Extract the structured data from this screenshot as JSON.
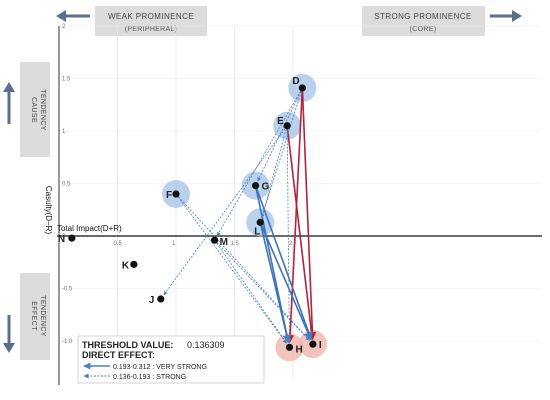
{
  "chart_data": {
    "type": "scatter",
    "xlabel": "Total Impact(D+R)",
    "ylabel": "Casulty(D−R)",
    "xlim": [
      0,
      2.3
    ],
    "ylim": [
      -1.3,
      2.0
    ],
    "x_ticks": [
      "0.5",
      "1",
      "1.5",
      "2"
    ],
    "y_ticks": [
      "2",
      "1.5",
      "1",
      "0.5",
      "0",
      "-0.5",
      "-1.0"
    ],
    "quadrants": {
      "top_left": "WEAK PROMINENCE",
      "top_left_sub": "(PERIPHERAL)",
      "top_right": "STRONG PROMINENCE",
      "top_right_sub": "(CORE)",
      "left_top_1": "CAUSE",
      "left_top_2": "TENDENCY",
      "left_bottom_1": "EFFECT",
      "left_bottom_2": "TENDENCY"
    },
    "points": [
      {
        "id": "D",
        "x": 2.08,
        "y": 1.41,
        "circle": "blue"
      },
      {
        "id": "E",
        "x": 1.95,
        "y": 1.05,
        "circle": "blue"
      },
      {
        "id": "F",
        "x": 1.0,
        "y": 0.4,
        "circle": "blue"
      },
      {
        "id": "G",
        "x": 1.68,
        "y": 0.48,
        "circle": "blue"
      },
      {
        "id": "L",
        "x": 1.72,
        "y": 0.13,
        "circle": "blue"
      },
      {
        "id": "H",
        "x": 1.97,
        "y": -1.06,
        "circle": "red"
      },
      {
        "id": "I",
        "x": 2.17,
        "y": -1.03,
        "circle": "red"
      },
      {
        "id": "M",
        "x": 1.33,
        "y": -0.04,
        "circle": "none"
      },
      {
        "id": "N",
        "x": 0.11,
        "y": -0.02,
        "circle": "none"
      },
      {
        "id": "K",
        "x": 0.64,
        "y": -0.27,
        "circle": "none"
      },
      {
        "id": "J",
        "x": 0.87,
        "y": -0.6,
        "circle": "none"
      }
    ],
    "relations": [
      {
        "from": "D",
        "to": "H",
        "strength": "very_strong"
      },
      {
        "from": "D",
        "to": "I",
        "strength": "very_strong"
      },
      {
        "from": "E",
        "to": "I",
        "strength": "very_strong"
      },
      {
        "from": "L",
        "to": "H",
        "strength": "very_strong_blue"
      },
      {
        "from": "L",
        "to": "I",
        "strength": "very_strong_blue"
      },
      {
        "from": "G",
        "to": "H",
        "strength": "very_strong_blue"
      },
      {
        "from": "G",
        "to": "I",
        "strength": "very_strong_blue"
      },
      {
        "from": "D",
        "to": "M",
        "strength": "strong"
      },
      {
        "from": "E",
        "to": "J",
        "strength": "strong"
      },
      {
        "from": "D",
        "to": "G",
        "strength": "strong"
      },
      {
        "from": "D",
        "to": "L",
        "strength": "strong"
      },
      {
        "from": "E",
        "to": "L",
        "strength": "strong"
      },
      {
        "from": "E",
        "to": "H",
        "strength": "strong"
      },
      {
        "from": "F",
        "to": "I",
        "strength": "strong"
      },
      {
        "from": "F",
        "to": "H",
        "strength": "strong"
      },
      {
        "from": "M",
        "to": "H",
        "strength": "strong"
      },
      {
        "from": "M",
        "to": "I",
        "strength": "strong"
      }
    ],
    "legend": {
      "title": "THRESHOLD VALUE:",
      "value": "0.136309",
      "subtitle": "DIRECT EFFECT:",
      "items": [
        {
          "label": "0.193-0.312 : VERY STRONG",
          "style": "solid"
        },
        {
          "label": "0.136-0.193 : STRONG",
          "style": "dashed"
        }
      ]
    },
    "colors": {
      "very_strong": "#b0253a",
      "very_strong_blue": "#3f73b5",
      "strong": "#4a7fc0",
      "blue_halo": "#a9c6e9",
      "red_halo": "#efb5ad",
      "pill": "#dcdcdc",
      "axis_arrow": "#5b6f8c"
    }
  }
}
